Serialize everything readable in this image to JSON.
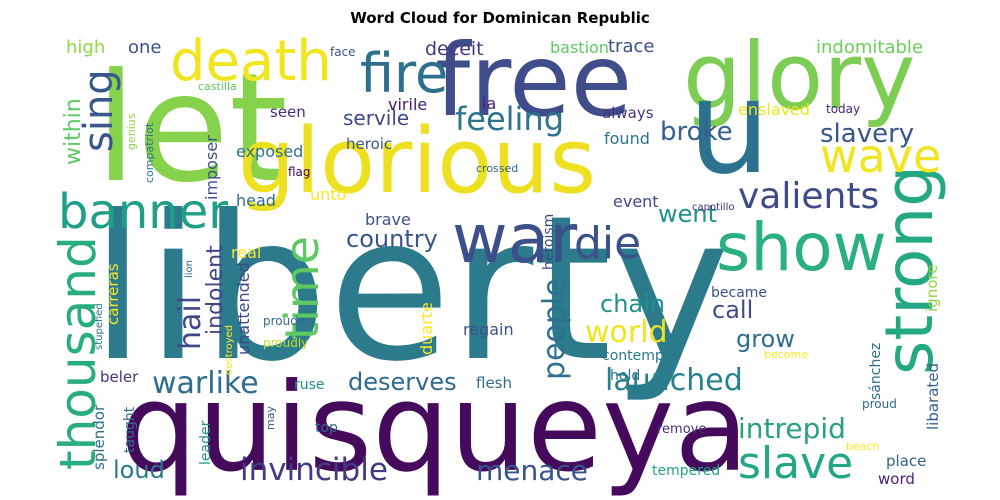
{
  "title": "Word Cloud for Dominican Republic",
  "words": [
    {
      "text": "liberty",
      "color": "#2b7b8c"
    },
    {
      "text": "quisqueya",
      "color": "#450a5c"
    },
    {
      "text": "let",
      "color": "#87d24d"
    },
    {
      "text": "glorious",
      "color": "#ede020"
    },
    {
      "text": "free",
      "color": "#3f4d8a"
    },
    {
      "text": "glory",
      "color": "#7dcd55"
    },
    {
      "text": "u",
      "color": "#2c728e"
    },
    {
      "text": "war",
      "color": "#3b4f8a"
    },
    {
      "text": "strong",
      "color": "#23a883"
    },
    {
      "text": "show",
      "color": "#2ab07f"
    },
    {
      "text": "death",
      "color": "#f0e51e"
    },
    {
      "text": "fire",
      "color": "#2d708e"
    },
    {
      "text": "thousand",
      "color": "#28ad80"
    },
    {
      "text": "banner",
      "color": "#1f9f88"
    },
    {
      "text": "wave",
      "color": "#f0e520"
    },
    {
      "text": "die",
      "color": "#3c508b"
    },
    {
      "text": "slave",
      "color": "#21a785"
    },
    {
      "text": "time",
      "color": "#5ec962"
    },
    {
      "text": "sing",
      "color": "#38588c"
    },
    {
      "text": "valients",
      "color": "#3e4a89"
    },
    {
      "text": "feeling",
      "color": "#2c738e"
    },
    {
      "text": "invincible",
      "color": "#443a83"
    },
    {
      "text": "warlike",
      "color": "#2f6c8e"
    },
    {
      "text": "people",
      "color": "#2d708e"
    },
    {
      "text": "world",
      "color": "#eee51c"
    },
    {
      "text": "launched",
      "color": "#26818e"
    },
    {
      "text": "intrepid",
      "color": "#2aa07f"
    },
    {
      "text": "menace",
      "color": "#3a538b"
    },
    {
      "text": "slavery",
      "color": "#39568c"
    },
    {
      "text": "broke",
      "color": "#35608d"
    },
    {
      "text": "hail",
      "color": "#3f4889"
    },
    {
      "text": "deserves",
      "color": "#30698e"
    },
    {
      "text": "loud",
      "color": "#2a788e"
    },
    {
      "text": "country",
      "color": "#3a548c"
    },
    {
      "text": "within",
      "color": "#5ec962"
    },
    {
      "text": "indolent",
      "color": "#3f4788"
    },
    {
      "text": "chain",
      "color": "#20928c"
    },
    {
      "text": "call",
      "color": "#3e4c8a"
    },
    {
      "text": "grow",
      "color": "#2e6e8e"
    },
    {
      "text": "went",
      "color": "#21918c"
    },
    {
      "text": "servile",
      "color": "#3f4889"
    },
    {
      "text": "high",
      "color": "#8fd744"
    },
    {
      "text": "one",
      "color": "#3b528b"
    },
    {
      "text": "deceit",
      "color": "#453781"
    },
    {
      "text": "trace",
      "color": "#3c4f8a"
    },
    {
      "text": "bastion",
      "color": "#5ec962"
    },
    {
      "text": "indomitable",
      "color": "#6ece58"
    },
    {
      "text": "seen",
      "color": "#472e7c"
    },
    {
      "text": "virile",
      "color": "#481b6d"
    },
    {
      "text": "la",
      "color": "#482173"
    },
    {
      "text": "always",
      "color": "#46337e"
    },
    {
      "text": "heroic",
      "color": "#38588c"
    },
    {
      "text": "found",
      "color": "#2b758e"
    },
    {
      "text": "enslaved",
      "color": "#ede51b"
    },
    {
      "text": "today",
      "color": "#482575"
    },
    {
      "text": "exposed",
      "color": "#2c728e"
    },
    {
      "text": "imposer",
      "color": "#3b528b"
    },
    {
      "text": "unto",
      "color": "#fde725"
    },
    {
      "text": "head",
      "color": "#31688e"
    },
    {
      "text": "brave",
      "color": "#3b528b"
    },
    {
      "text": "event",
      "color": "#3e4989"
    },
    {
      "text": "real",
      "color": "#fde725"
    },
    {
      "text": "unattended",
      "color": "#3f4788"
    },
    {
      "text": "carreras",
      "color": "#fde725"
    },
    {
      "text": "heroism",
      "color": "#3e4989"
    },
    {
      "text": "became",
      "color": "#3b528b"
    },
    {
      "text": "ignore",
      "color": "#8fd744"
    },
    {
      "text": "libarated",
      "color": "#35608d"
    },
    {
      "text": "sánchez",
      "color": "#2c718e"
    },
    {
      "text": "regain",
      "color": "#3b528b"
    },
    {
      "text": "duarte",
      "color": "#fde725"
    },
    {
      "text": "contempt",
      "color": "#2a788e"
    },
    {
      "text": "prouder",
      "color": "#31688e"
    },
    {
      "text": "proudly",
      "color": "#bddf26"
    },
    {
      "text": "become",
      "color": "#fde725"
    },
    {
      "text": "beler",
      "color": "#46327e"
    },
    {
      "text": "ruse",
      "color": "#21918c"
    },
    {
      "text": "flesh",
      "color": "#31688e"
    },
    {
      "text": "hold",
      "color": "#2c728e"
    },
    {
      "text": "proud",
      "color": "#31688e"
    },
    {
      "text": "splendor",
      "color": "#2c728e"
    },
    {
      "text": "taught",
      "color": "#2c728e"
    },
    {
      "text": "leader",
      "color": "#21918c"
    },
    {
      "text": "top",
      "color": "#31688e"
    },
    {
      "text": "may",
      "color": "#3b528b"
    },
    {
      "text": "remove",
      "color": "#472d7b"
    },
    {
      "text": "tempered",
      "color": "#20a386"
    },
    {
      "text": "beach",
      "color": "#fde725"
    },
    {
      "text": "place",
      "color": "#35608d"
    },
    {
      "text": "word",
      "color": "#482475"
    },
    {
      "text": "castilla",
      "color": "#5ec962"
    },
    {
      "text": "compatriot",
      "color": "#2c728e"
    },
    {
      "text": "genius",
      "color": "#8fd744"
    },
    {
      "text": "face",
      "color": "#3b528b"
    },
    {
      "text": "flag",
      "color": "#440154"
    },
    {
      "text": "crossed",
      "color": "#35608d"
    },
    {
      "text": "capotillo",
      "color": "#472d7b"
    },
    {
      "text": "stupefied",
      "color": "#2c728e"
    },
    {
      "text": "lion",
      "color": "#31688e"
    },
    {
      "text": "destroyed",
      "color": "#fde725"
    }
  ]
}
